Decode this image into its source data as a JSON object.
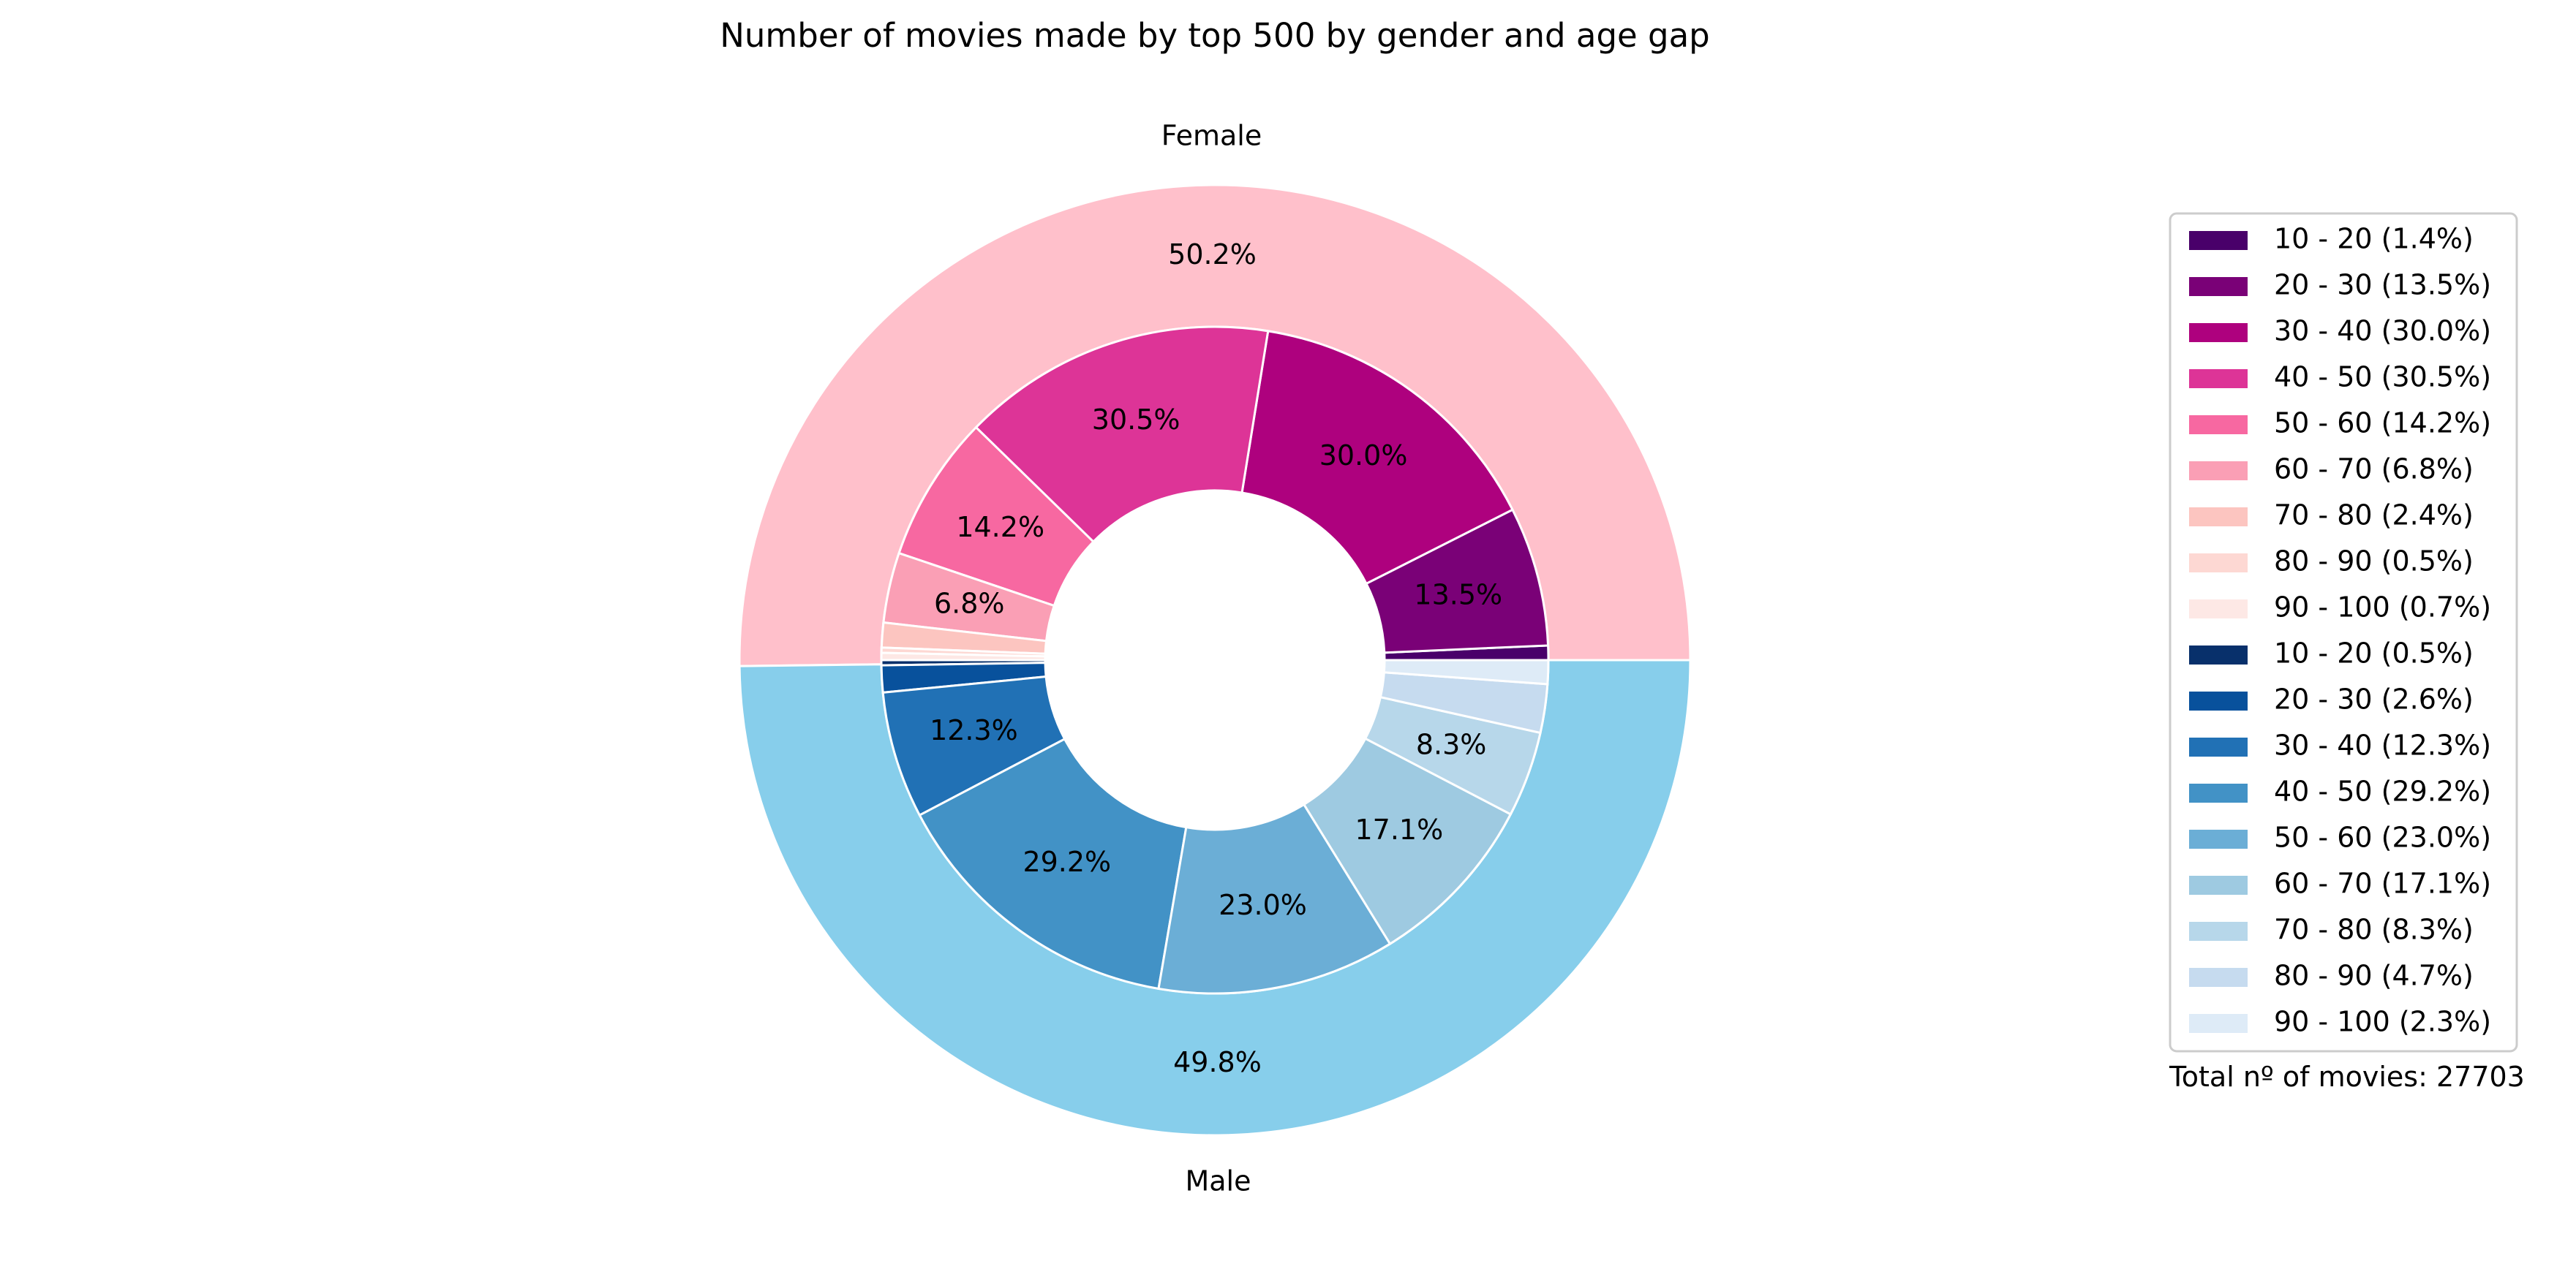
{
  "chart_data": {
    "type": "pie",
    "title": "Number of movies made by top 500 by gender and age gap",
    "footnote": "Total nº of movies: 27703",
    "legend_position": "right",
    "outer_ring": [
      {
        "name": "Female",
        "percent": 50.2,
        "label": "50.2%",
        "color": "#FFC0CB"
      },
      {
        "name": "Male",
        "percent": 49.8,
        "label": "49.8%",
        "color": "#87CEEB"
      }
    ],
    "inner_ring": [
      {
        "group": "Female",
        "range": "10 - 20",
        "percent": 1.4,
        "color": "#49006a"
      },
      {
        "group": "Female",
        "range": "20 - 30",
        "percent": 13.5,
        "color": "#7a0177"
      },
      {
        "group": "Female",
        "range": "30 - 40",
        "percent": 30.0,
        "color": "#ae017e"
      },
      {
        "group": "Female",
        "range": "40 - 50",
        "percent": 30.5,
        "color": "#dd3497"
      },
      {
        "group": "Female",
        "range": "50 - 60",
        "percent": 14.2,
        "color": "#f768a1"
      },
      {
        "group": "Female",
        "range": "60 - 70",
        "percent": 6.8,
        "color": "#fa9fb5"
      },
      {
        "group": "Female",
        "range": "70 - 80",
        "percent": 2.4,
        "color": "#fcc5c0"
      },
      {
        "group": "Female",
        "range": "80 - 90",
        "percent": 0.5,
        "color": "#fdd8d3"
      },
      {
        "group": "Female",
        "range": "90 - 100",
        "percent": 0.7,
        "color": "#fde8e5"
      },
      {
        "group": "Male",
        "range": "10 - 20",
        "percent": 0.5,
        "color": "#08306b"
      },
      {
        "group": "Male",
        "range": "20 - 30",
        "percent": 2.6,
        "color": "#08519c"
      },
      {
        "group": "Male",
        "range": "30 - 40",
        "percent": 12.3,
        "color": "#2171b5"
      },
      {
        "group": "Male",
        "range": "40 - 50",
        "percent": 29.2,
        "color": "#4292c6"
      },
      {
        "group": "Male",
        "range": "50 - 60",
        "percent": 23.0,
        "color": "#6baed6"
      },
      {
        "group": "Male",
        "range": "60 - 70",
        "percent": 17.1,
        "color": "#9ecae1"
      },
      {
        "group": "Male",
        "range": "70 - 80",
        "percent": 8.3,
        "color": "#b7d7ea"
      },
      {
        "group": "Male",
        "range": "80 - 90",
        "percent": 4.7,
        "color": "#c6dbef"
      },
      {
        "group": "Male",
        "range": "90 - 100",
        "percent": 2.3,
        "color": "#deebf7"
      }
    ],
    "legend": [
      "10 - 20 (1.4%)",
      "20 - 30 (13.5%)",
      "30 - 40 (30.0%)",
      "40 - 50 (30.5%)",
      "50 - 60 (14.2%)",
      "60 - 70 (6.8%)",
      "70 - 80 (2.4%)",
      "80 - 90 (0.5%)",
      "90 - 100 (0.7%)",
      "10 - 20 (0.5%)",
      "20 - 30 (2.6%)",
      "30 - 40 (12.3%)",
      "40 - 50 (29.2%)",
      "50 - 60 (23.0%)",
      "60 - 70 (17.1%)",
      "70 - 80 (8.3%)",
      "80 - 90 (4.7%)",
      "90 - 100 (2.3%)"
    ]
  }
}
